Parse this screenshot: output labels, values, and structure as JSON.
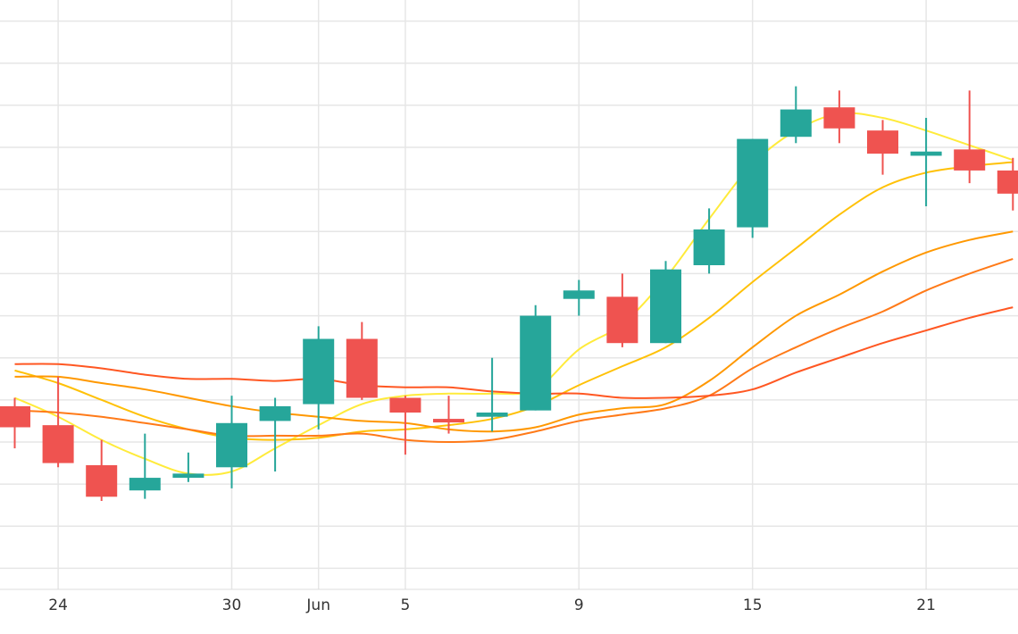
{
  "chart_data": {
    "type": "candlestick",
    "x_ticks": [
      {
        "label": "24",
        "index": 1
      },
      {
        "label": "30",
        "index": 5
      },
      {
        "label": "Jun",
        "index": 7
      },
      {
        "label": "5",
        "index": 9
      },
      {
        "label": "9",
        "index": 13
      },
      {
        "label": "15",
        "index": 17
      },
      {
        "label": "21",
        "index": 21
      }
    ],
    "ylim": [
      0,
      14
    ],
    "y_gridlines": [
      0.5,
      1.5,
      2.5,
      3.5,
      4.5,
      5.5,
      6.5,
      7.5,
      8.5,
      9.5,
      10.5,
      11.5,
      12.5,
      13.5
    ],
    "grid": true,
    "candles": [
      {
        "open": 4.35,
        "high": 4.55,
        "low": 3.35,
        "close": 3.85
      },
      {
        "open": 3.9,
        "high": 5.05,
        "low": 2.9,
        "close": 3.0
      },
      {
        "open": 2.95,
        "high": 3.55,
        "low": 2.1,
        "close": 2.2
      },
      {
        "open": 2.35,
        "high": 3.7,
        "low": 2.15,
        "close": 2.65
      },
      {
        "open": 2.65,
        "high": 3.25,
        "low": 2.55,
        "close": 2.75
      },
      {
        "open": 2.9,
        "high": 4.6,
        "low": 2.4,
        "close": 3.95
      },
      {
        "open": 4.0,
        "high": 4.55,
        "low": 2.8,
        "close": 4.35
      },
      {
        "open": 4.4,
        "high": 6.25,
        "low": 3.8,
        "close": 5.95
      },
      {
        "open": 5.95,
        "high": 6.35,
        "low": 4.5,
        "close": 4.55
      },
      {
        "open": 4.55,
        "high": 4.6,
        "low": 3.2,
        "close": 4.2
      },
      {
        "open": 4.05,
        "high": 4.6,
        "low": 3.7,
        "close": 4.0
      },
      {
        "open": 4.1,
        "high": 5.5,
        "low": 3.75,
        "close": 4.2
      },
      {
        "open": 4.25,
        "high": 6.75,
        "low": 4.25,
        "close": 6.5
      },
      {
        "open": 6.9,
        "high": 7.35,
        "low": 6.5,
        "close": 7.1
      },
      {
        "open": 6.95,
        "high": 7.5,
        "low": 5.75,
        "close": 5.85
      },
      {
        "open": 5.85,
        "high": 7.8,
        "low": 5.85,
        "close": 7.6
      },
      {
        "open": 7.7,
        "high": 9.05,
        "low": 7.5,
        "close": 8.55
      },
      {
        "open": 8.6,
        "high": 10.7,
        "low": 8.35,
        "close": 10.7
      },
      {
        "open": 10.75,
        "high": 11.95,
        "low": 10.6,
        "close": 11.4
      },
      {
        "open": 11.45,
        "high": 11.85,
        "low": 10.6,
        "close": 10.95
      },
      {
        "open": 10.9,
        "high": 11.15,
        "low": 9.85,
        "close": 10.35
      },
      {
        "open": 10.3,
        "high": 11.2,
        "low": 9.1,
        "close": 10.4
      },
      {
        "open": 10.45,
        "high": 11.85,
        "low": 9.65,
        "close": 9.95
      },
      {
        "open": 9.95,
        "high": 10.25,
        "low": 9.0,
        "close": 9.4
      }
    ],
    "moving_averages": [
      {
        "color": "#ffeb3b",
        "values": [
          4.55,
          4.1,
          3.55,
          3.1,
          2.75,
          2.8,
          3.35,
          3.9,
          4.4,
          4.6,
          4.65,
          4.65,
          4.75,
          5.7,
          6.3,
          7.4,
          8.8,
          10.1,
          10.9,
          11.3,
          11.2,
          10.9,
          10.55,
          10.2
        ]
      },
      {
        "color": "#ffc107",
        "values": [
          5.2,
          4.9,
          4.5,
          4.1,
          3.8,
          3.6,
          3.55,
          3.6,
          3.75,
          3.8,
          3.9,
          4.05,
          4.35,
          4.85,
          5.3,
          5.75,
          6.45,
          7.3,
          8.1,
          8.9,
          9.55,
          9.9,
          10.05,
          10.15
        ]
      },
      {
        "color": "#ff9800",
        "values": [
          5.05,
          5.05,
          4.9,
          4.75,
          4.55,
          4.35,
          4.2,
          4.1,
          4.0,
          3.95,
          3.8,
          3.75,
          3.85,
          4.15,
          4.3,
          4.4,
          4.95,
          5.75,
          6.5,
          7.0,
          7.55,
          8.0,
          8.3,
          8.5
        ]
      },
      {
        "color": "#ff7a18",
        "values": [
          4.25,
          4.2,
          4.1,
          3.95,
          3.8,
          3.65,
          3.65,
          3.65,
          3.7,
          3.55,
          3.5,
          3.55,
          3.75,
          4.0,
          4.15,
          4.3,
          4.6,
          5.25,
          5.75,
          6.2,
          6.6,
          7.1,
          7.5,
          7.85
        ]
      },
      {
        "color": "#ff5722",
        "values": [
          5.35,
          5.35,
          5.25,
          5.1,
          5.0,
          5.0,
          4.95,
          5.0,
          4.85,
          4.8,
          4.8,
          4.7,
          4.65,
          4.65,
          4.55,
          4.55,
          4.6,
          4.75,
          5.15,
          5.5,
          5.85,
          6.15,
          6.45,
          6.7
        ]
      }
    ],
    "up_color": "#26a69a",
    "down_color": "#ef5350",
    "grid_color": "#e6e6e6"
  }
}
